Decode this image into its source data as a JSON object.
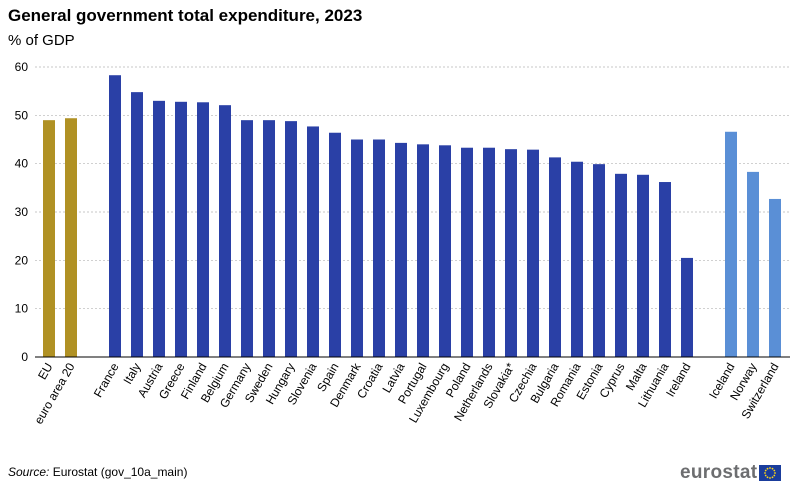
{
  "title": "General government total expenditure, 2023",
  "subtitle": "% of GDP",
  "source_label": "Source:",
  "source_text": "Eurostat (gov_10a_main)",
  "logo_text": "eurostat",
  "colors": {
    "aggregate": "#b09124",
    "eu_member": "#2a40a6",
    "efta": "#5a8fd6",
    "grid": "#b5b5b5",
    "logo_flag": "#1a3d9c"
  },
  "chart_data": {
    "type": "bar",
    "title": "General government total expenditure, 2023",
    "ylabel": "% of GDP",
    "xlabel": "",
    "ylim": [
      0,
      60
    ],
    "yticks": [
      0,
      10,
      20,
      30,
      40,
      50,
      60
    ],
    "grid": true,
    "groups": [
      {
        "name": "aggregates",
        "color_key": "aggregate",
        "categories": [
          "EU",
          "euro area 20"
        ],
        "values": [
          49.0,
          49.4
        ]
      },
      {
        "name": "eu-members",
        "color_key": "eu_member",
        "categories": [
          "France",
          "Italy",
          "Austria",
          "Greece",
          "Finland",
          "Belgium",
          "Germany",
          "Sweden",
          "Hungary",
          "Slovenia",
          "Spain",
          "Denmark",
          "Croatia",
          "Latvia",
          "Portugal",
          "Luxembourg",
          "Poland",
          "Netherlands",
          "Slovakia*",
          "Czechia",
          "Bulgaria",
          "Romania",
          "Estonia",
          "Cyprus",
          "Malta",
          "Lithuania",
          "Ireland"
        ],
        "values": [
          58.3,
          54.8,
          53.0,
          52.8,
          52.7,
          52.1,
          49.0,
          49.0,
          48.8,
          47.7,
          46.4,
          45.0,
          45.0,
          44.3,
          44.0,
          43.8,
          43.3,
          43.3,
          43.0,
          42.9,
          41.3,
          40.4,
          39.9,
          37.9,
          37.7,
          36.2,
          20.5
        ]
      },
      {
        "name": "efta",
        "color_key": "efta",
        "categories": [
          "Iceland",
          "Norway",
          "Switzerland"
        ],
        "values": [
          46.6,
          38.3,
          32.7
        ]
      }
    ]
  }
}
